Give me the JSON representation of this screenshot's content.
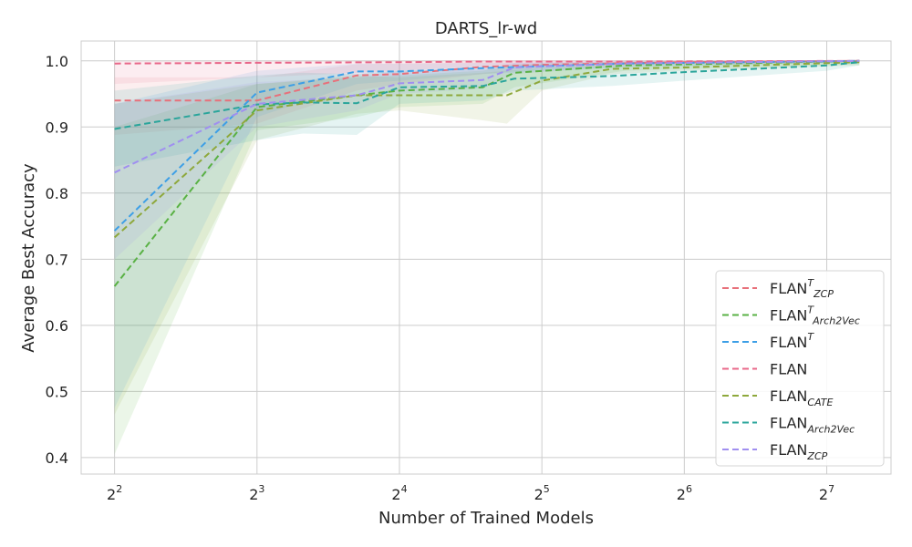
{
  "chart_data": {
    "type": "line",
    "title": "DARTS_lr-wd",
    "xlabel": "Number of Trained Models",
    "ylabel": "Average Best Accuracy",
    "x_scale": "log2",
    "xlim": [
      3.4,
      175
    ],
    "ylim": [
      0.375,
      1.03
    ],
    "grid": true,
    "legend_location": "lower-right",
    "x_ticks": [
      {
        "value": 4,
        "base": "2",
        "exp": "2"
      },
      {
        "value": 8,
        "base": "2",
        "exp": "3"
      },
      {
        "value": 16,
        "base": "2",
        "exp": "4"
      },
      {
        "value": 32,
        "base": "2",
        "exp": "5"
      },
      {
        "value": 64,
        "base": "2",
        "exp": "6"
      },
      {
        "value": 128,
        "base": "2",
        "exp": "7"
      }
    ],
    "y_ticks": [
      {
        "value": 0.4,
        "label": "0.4"
      },
      {
        "value": 0.5,
        "label": "0.5"
      },
      {
        "value": 0.6,
        "label": "0.6"
      },
      {
        "value": 0.7,
        "label": "0.7"
      },
      {
        "value": 0.8,
        "label": "0.8"
      },
      {
        "value": 0.9,
        "label": "0.9"
      },
      {
        "value": 1.0,
        "label": "1.0"
      }
    ],
    "series": [
      {
        "name": "FLAN",
        "sup": "T",
        "sub": "ZCP",
        "color": "#e8707a",
        "x": [
          4,
          8,
          13,
          16,
          24,
          32,
          64,
          150
        ],
        "y": [
          0.94,
          0.94,
          0.978,
          0.98,
          0.991,
          0.994,
          0.998,
          1.0
        ],
        "lower": [
          0.888,
          0.905,
          0.955,
          0.965,
          0.98,
          0.988,
          0.995,
          0.998
        ],
        "upper": [
          0.975,
          0.975,
          0.995,
          0.996,
          0.999,
          1.0,
          1.0,
          1.0
        ]
      },
      {
        "name": "FLAN",
        "sup": "T",
        "sub": "Arch2Vec",
        "color": "#59b144",
        "x": [
          4,
          8,
          13,
          16,
          24,
          28,
          48,
          150
        ],
        "y": [
          0.659,
          0.93,
          0.948,
          0.955,
          0.96,
          0.982,
          0.993,
          1.0
        ],
        "lower": [
          0.405,
          0.895,
          0.915,
          0.93,
          0.935,
          0.96,
          0.985,
          0.995
        ],
        "upper": [
          0.9,
          0.965,
          0.975,
          0.978,
          0.985,
          0.995,
          0.999,
          1.0
        ]
      },
      {
        "name": "FLAN",
        "sup": "T",
        "sub": "",
        "color": "#3d9fe6",
        "x": [
          4,
          8,
          13,
          16,
          24,
          48,
          150
        ],
        "y": [
          0.743,
          0.952,
          0.984,
          0.984,
          0.989,
          0.996,
          1.0
        ],
        "lower": [
          0.475,
          0.915,
          0.965,
          0.97,
          0.98,
          0.99,
          0.998
        ],
        "upper": [
          0.935,
          0.985,
          0.996,
          0.996,
          0.997,
          0.999,
          1.0
        ]
      },
      {
        "name": "FLAN",
        "sup": "",
        "sub": "",
        "color": "#e8688a",
        "x": [
          4,
          8,
          16,
          24,
          48,
          150
        ],
        "y": [
          0.996,
          0.997,
          0.998,
          0.999,
          0.999,
          1.0
        ],
        "lower": [
          0.965,
          0.975,
          0.985,
          0.992,
          0.995,
          0.998
        ],
        "upper": [
          1.0,
          1.0,
          1.0,
          1.0,
          1.0,
          1.0
        ]
      },
      {
        "name": "FLAN",
        "sup": "",
        "sub": "CATE",
        "color": "#8ea83c",
        "x": [
          4,
          8,
          13,
          16,
          24,
          27,
          32,
          45,
          64,
          150
        ],
        "y": [
          0.733,
          0.925,
          0.948,
          0.948,
          0.948,
          0.948,
          0.97,
          0.988,
          0.99,
          0.998
        ],
        "lower": [
          0.465,
          0.88,
          0.92,
          0.925,
          0.91,
          0.905,
          0.955,
          0.98,
          0.985,
          0.993
        ],
        "upper": [
          0.935,
          0.965,
          0.978,
          0.975,
          0.982,
          0.985,
          0.988,
          0.995,
          0.997,
          1.0
        ]
      },
      {
        "name": "FLAN",
        "sup": "",
        "sub": "Arch2Vec",
        "color": "#2aa59b",
        "x": [
          4,
          8,
          10,
          13,
          16,
          24,
          28,
          45,
          64,
          128,
          150
        ],
        "y": [
          0.897,
          0.934,
          0.937,
          0.936,
          0.96,
          0.962,
          0.973,
          0.977,
          0.983,
          0.993,
          0.998
        ],
        "lower": [
          0.84,
          0.88,
          0.89,
          0.888,
          0.935,
          0.94,
          0.955,
          0.962,
          0.97,
          0.985,
          0.993
        ],
        "upper": [
          0.955,
          0.978,
          0.982,
          0.98,
          0.985,
          0.988,
          0.99,
          0.992,
          0.995,
          0.999,
          1.0
        ]
      },
      {
        "name": "FLAN",
        "sup": "",
        "sub": "ZCP",
        "color": "#a08ff0",
        "x": [
          4,
          8,
          13,
          16,
          24,
          28,
          48,
          150
        ],
        "y": [
          0.831,
          0.935,
          0.948,
          0.966,
          0.971,
          0.99,
          0.996,
          1.0
        ],
        "lower": [
          0.7,
          0.9,
          0.925,
          0.95,
          0.958,
          0.98,
          0.992,
          0.998
        ],
        "upper": [
          0.935,
          0.968,
          0.975,
          0.985,
          0.988,
          0.997,
          0.999,
          1.0
        ]
      }
    ]
  }
}
